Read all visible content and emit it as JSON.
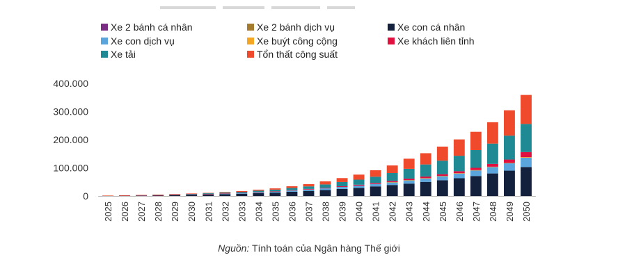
{
  "colors": {
    "xe2_personal": "#7b2c83",
    "xe2_service": "#a57c2e",
    "car_personal": "#13213d",
    "car_service": "#5aa6dc",
    "bus": "#f5a623",
    "intercity": "#e0103f",
    "truck": "#1f8a93",
    "loss": "#f04a2c"
  },
  "source": {
    "lead": "Nguồn:",
    "text": " Tính toán của Ngân hàng Thế giới"
  },
  "chart_data": {
    "type": "bar",
    "stacked": true,
    "legend_position": "top",
    "grid": false,
    "ylim": [
      0,
      400000
    ],
    "yticks": [
      "0",
      "100.000",
      "200.000",
      "300.000",
      "400.000"
    ],
    "ytick_values": [
      0,
      100000,
      200000,
      300000,
      400000
    ],
    "categories": [
      "2025",
      "2026",
      "2027",
      "2028",
      "2029",
      "2030",
      "2031",
      "2032",
      "2033",
      "2034",
      "2035",
      "2036",
      "2037",
      "2038",
      "2039",
      "2040",
      "2041",
      "2042",
      "2043",
      "2044",
      "2045",
      "2046",
      "2047",
      "2048",
      "2049",
      "2050"
    ],
    "legend_order": [
      "xe2_personal",
      "xe2_service",
      "car_personal",
      "car_service",
      "bus",
      "intercity",
      "truck",
      "loss"
    ],
    "series": [
      {
        "key": "xe2_personal",
        "name": "Xe 2 bánh cá nhân",
        "color": "#7b2c83",
        "values": [
          0,
          0,
          0,
          0,
          0,
          0,
          0,
          0,
          0,
          0,
          0,
          0,
          0,
          0,
          0,
          0,
          0,
          0,
          0,
          0,
          0,
          0,
          0,
          0,
          0,
          0
        ]
      },
      {
        "key": "xe2_service",
        "name": "Xe 2 bánh dịch vụ",
        "color": "#a57c2e",
        "values": [
          0,
          0,
          0,
          0,
          0,
          0,
          0,
          0,
          0,
          0,
          0,
          0,
          0,
          0,
          0,
          0,
          0,
          0,
          0,
          0,
          0,
          0,
          0,
          0,
          0,
          0
        ]
      },
      {
        "key": "car_personal",
        "name": "Xe con cá nhân",
        "color": "#13213d",
        "values": [
          500,
          1000,
          1500,
          2000,
          3000,
          4000,
          5000,
          6500,
          8000,
          10000,
          12000,
          15000,
          18000,
          21000,
          25000,
          29000,
          34000,
          39000,
          44000,
          50000,
          56000,
          63000,
          71000,
          80000,
          90000,
          103000
        ]
      },
      {
        "key": "car_service",
        "name": "Xe con dịch vụ",
        "color": "#5aa6dc",
        "values": [
          200,
          300,
          500,
          700,
          1000,
          1200,
          1500,
          2000,
          2500,
          3000,
          3500,
          4000,
          5000,
          6000,
          7000,
          8000,
          9000,
          10000,
          12000,
          13000,
          15000,
          17000,
          20000,
          23000,
          26000,
          33000
        ]
      },
      {
        "key": "bus",
        "name": "Xe buýt công cộng",
        "color": "#f5a623",
        "values": [
          0,
          0,
          0,
          0,
          0,
          0,
          0,
          0,
          0,
          0,
          0,
          0,
          0,
          0,
          0,
          0,
          0,
          500,
          500,
          500,
          500,
          1000,
          1000,
          1000,
          1500,
          2000
        ]
      },
      {
        "key": "intercity",
        "name": "Xe khách liên tỉnh",
        "color": "#e0103f",
        "values": [
          100,
          200,
          200,
          300,
          400,
          500,
          600,
          700,
          800,
          1000,
          1000,
          1500,
          2000,
          2000,
          2500,
          3000,
          3500,
          4000,
          5000,
          5500,
          6000,
          7000,
          8000,
          10000,
          12000,
          18000
        ]
      },
      {
        "key": "truck",
        "name": "Xe tải",
        "color": "#1f8a93",
        "values": [
          500,
          700,
          1000,
          1300,
          1500,
          2000,
          2500,
          3000,
          3500,
          5000,
          6000,
          8000,
          9000,
          12000,
          15000,
          18000,
          22000,
          28000,
          35000,
          43000,
          48000,
          55000,
          63000,
          72000,
          85000,
          100000
        ]
      },
      {
        "key": "loss",
        "name": "Tổn thất công suất",
        "color": "#f04a2c",
        "values": [
          200,
          300,
          500,
          700,
          1000,
          1200,
          1500,
          2000,
          2500,
          3500,
          4500,
          6000,
          8000,
          11000,
          14000,
          18000,
          23000,
          27000,
          36000,
          40000,
          50000,
          58000,
          65000,
          76000,
          90000,
          103000
        ]
      }
    ]
  }
}
